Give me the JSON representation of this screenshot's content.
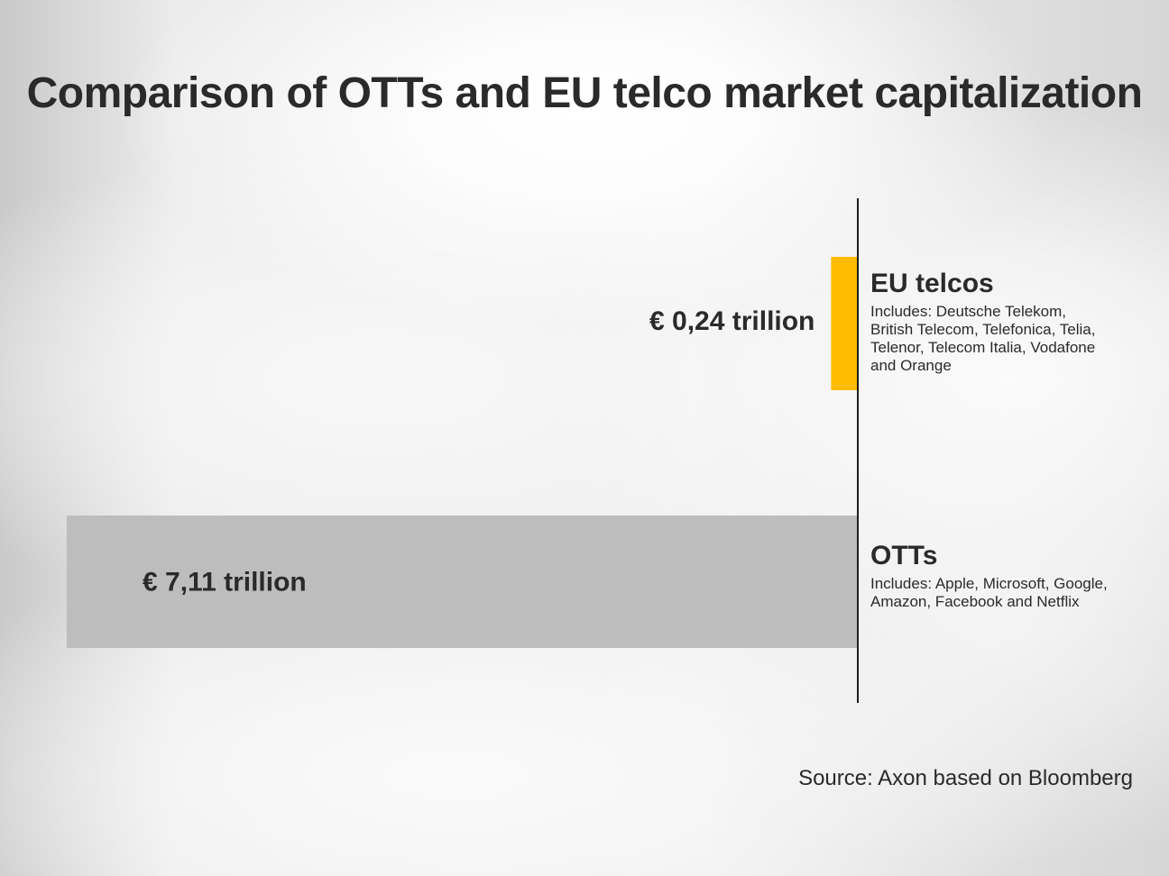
{
  "chart_data": {
    "type": "bar",
    "orientation": "horizontal",
    "title": "Comparison of OTTs and EU telco market capitalization",
    "categories": [
      "EU telcos",
      "OTTs"
    ],
    "values": [
      0.24,
      7.11
    ],
    "value_labels": [
      "€ 0,24 trillion",
      "€ 7,11 trillion"
    ],
    "descriptions": [
      "Includes: Deutsche Telekom,\nBritish Telecom, Telefonica, Telia,\nTelenor, Telecom Italia, Vodafone\nand Orange",
      "Includes: Apple, Microsoft, Google,\nAmazon, Facebook and Netflix"
    ],
    "colors": [
      "#ffbb00",
      "#bdbdbd"
    ],
    "xlim": [
      0,
      7.11
    ],
    "grid": false,
    "legend": "none",
    "source": "Source: Axon based on Bloomberg"
  }
}
